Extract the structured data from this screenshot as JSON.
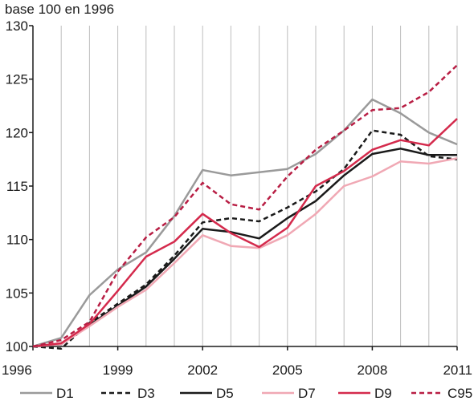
{
  "chart_data": {
    "type": "line",
    "title": "",
    "ylabel": "base 100 en 1996",
    "xlabel": "",
    "ylim": [
      100,
      130
    ],
    "xlim": [
      1996,
      2011
    ],
    "y_ticks": [
      100,
      105,
      110,
      115,
      120,
      125,
      130
    ],
    "x_ticks": [
      1996,
      1999,
      2002,
      2005,
      2008,
      2011
    ],
    "grid": "vertical",
    "legend_position": "bottom",
    "x": [
      1996,
      1997,
      1998,
      1999,
      2000,
      2001,
      2002,
      2003,
      2004,
      2005,
      2006,
      2007,
      2008,
      2009,
      2010,
      2011
    ],
    "series": [
      {
        "name": "D1",
        "color": "#9a9a9a",
        "dash": "solid",
        "values": [
          100,
          100.8,
          104.8,
          107.2,
          108.8,
          112.2,
          116.5,
          116.0,
          116.3,
          116.6,
          118.0,
          120.2,
          123.1,
          121.8,
          120.0,
          118.9
        ]
      },
      {
        "name": "D3",
        "color": "#1a1a1a",
        "dash": "dashed",
        "values": [
          100,
          99.8,
          102.2,
          104.0,
          105.8,
          108.5,
          111.6,
          112.0,
          111.7,
          113.0,
          114.5,
          116.6,
          120.2,
          119.8,
          117.8,
          117.5
        ]
      },
      {
        "name": "D5",
        "color": "#1a1a1a",
        "dash": "solid",
        "values": [
          100,
          100.2,
          102.0,
          103.8,
          105.6,
          108.2,
          111.0,
          110.7,
          110.1,
          112.0,
          113.6,
          116.0,
          118.0,
          118.5,
          117.9,
          117.9
        ]
      },
      {
        "name": "D7",
        "color": "#f0a8b4",
        "dash": "solid",
        "values": [
          100,
          100.2,
          101.9,
          103.7,
          105.3,
          107.8,
          110.4,
          109.4,
          109.2,
          110.4,
          112.4,
          115.0,
          115.9,
          117.3,
          117.1,
          117.6
        ]
      },
      {
        "name": "D9",
        "color": "#d42a4c",
        "dash": "solid",
        "values": [
          100,
          100.3,
          102.1,
          105.2,
          108.4,
          109.8,
          112.4,
          110.6,
          109.3,
          111.1,
          115.0,
          116.4,
          118.4,
          119.3,
          118.8,
          121.3
        ]
      },
      {
        "name": "C95",
        "color": "#b81e44",
        "dash": "dashed",
        "values": [
          100,
          100.6,
          102.3,
          107.0,
          110.2,
          112.1,
          115.3,
          113.3,
          112.8,
          115.9,
          118.4,
          120.2,
          122.1,
          122.3,
          123.8,
          126.3
        ]
      }
    ]
  }
}
